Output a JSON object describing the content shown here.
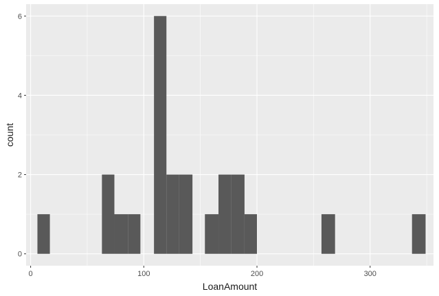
{
  "chart_data": {
    "type": "bar",
    "subtype": "histogram",
    "xlabel": "LoanAmount",
    "ylabel": "count",
    "xlim": [
      -4,
      356
    ],
    "ylim": [
      -0.3,
      6.3
    ],
    "x_ticks": [
      {
        "value": 0,
        "label": "0"
      },
      {
        "value": 100,
        "label": "100"
      },
      {
        "value": 200,
        "label": "200"
      },
      {
        "value": 300,
        "label": "300"
      }
    ],
    "y_ticks": [
      {
        "value": 0,
        "label": "0"
      },
      {
        "value": 2,
        "label": "2"
      },
      {
        "value": 4,
        "label": "4"
      },
      {
        "value": 6,
        "label": "6"
      }
    ],
    "bins": [
      {
        "start": 6,
        "end": 17,
        "count": 1
      },
      {
        "start": 63,
        "end": 74,
        "count": 2
      },
      {
        "start": 74,
        "end": 86,
        "count": 1
      },
      {
        "start": 86,
        "end": 97,
        "count": 1
      },
      {
        "start": 109,
        "end": 120,
        "count": 6
      },
      {
        "start": 120,
        "end": 131,
        "count": 2
      },
      {
        "start": 131,
        "end": 143,
        "count": 2
      },
      {
        "start": 154,
        "end": 166,
        "count": 1
      },
      {
        "start": 166,
        "end": 177,
        "count": 2
      },
      {
        "start": 177,
        "end": 189,
        "count": 2
      },
      {
        "start": 189,
        "end": 200,
        "count": 1
      },
      {
        "start": 257,
        "end": 269,
        "count": 1
      },
      {
        "start": 337,
        "end": 349,
        "count": 1
      }
    ],
    "colors": {
      "panel": "#ebebeb",
      "grid_major": "#ffffff",
      "bar_fill": "#595959"
    },
    "grid": true,
    "legend": "none"
  }
}
